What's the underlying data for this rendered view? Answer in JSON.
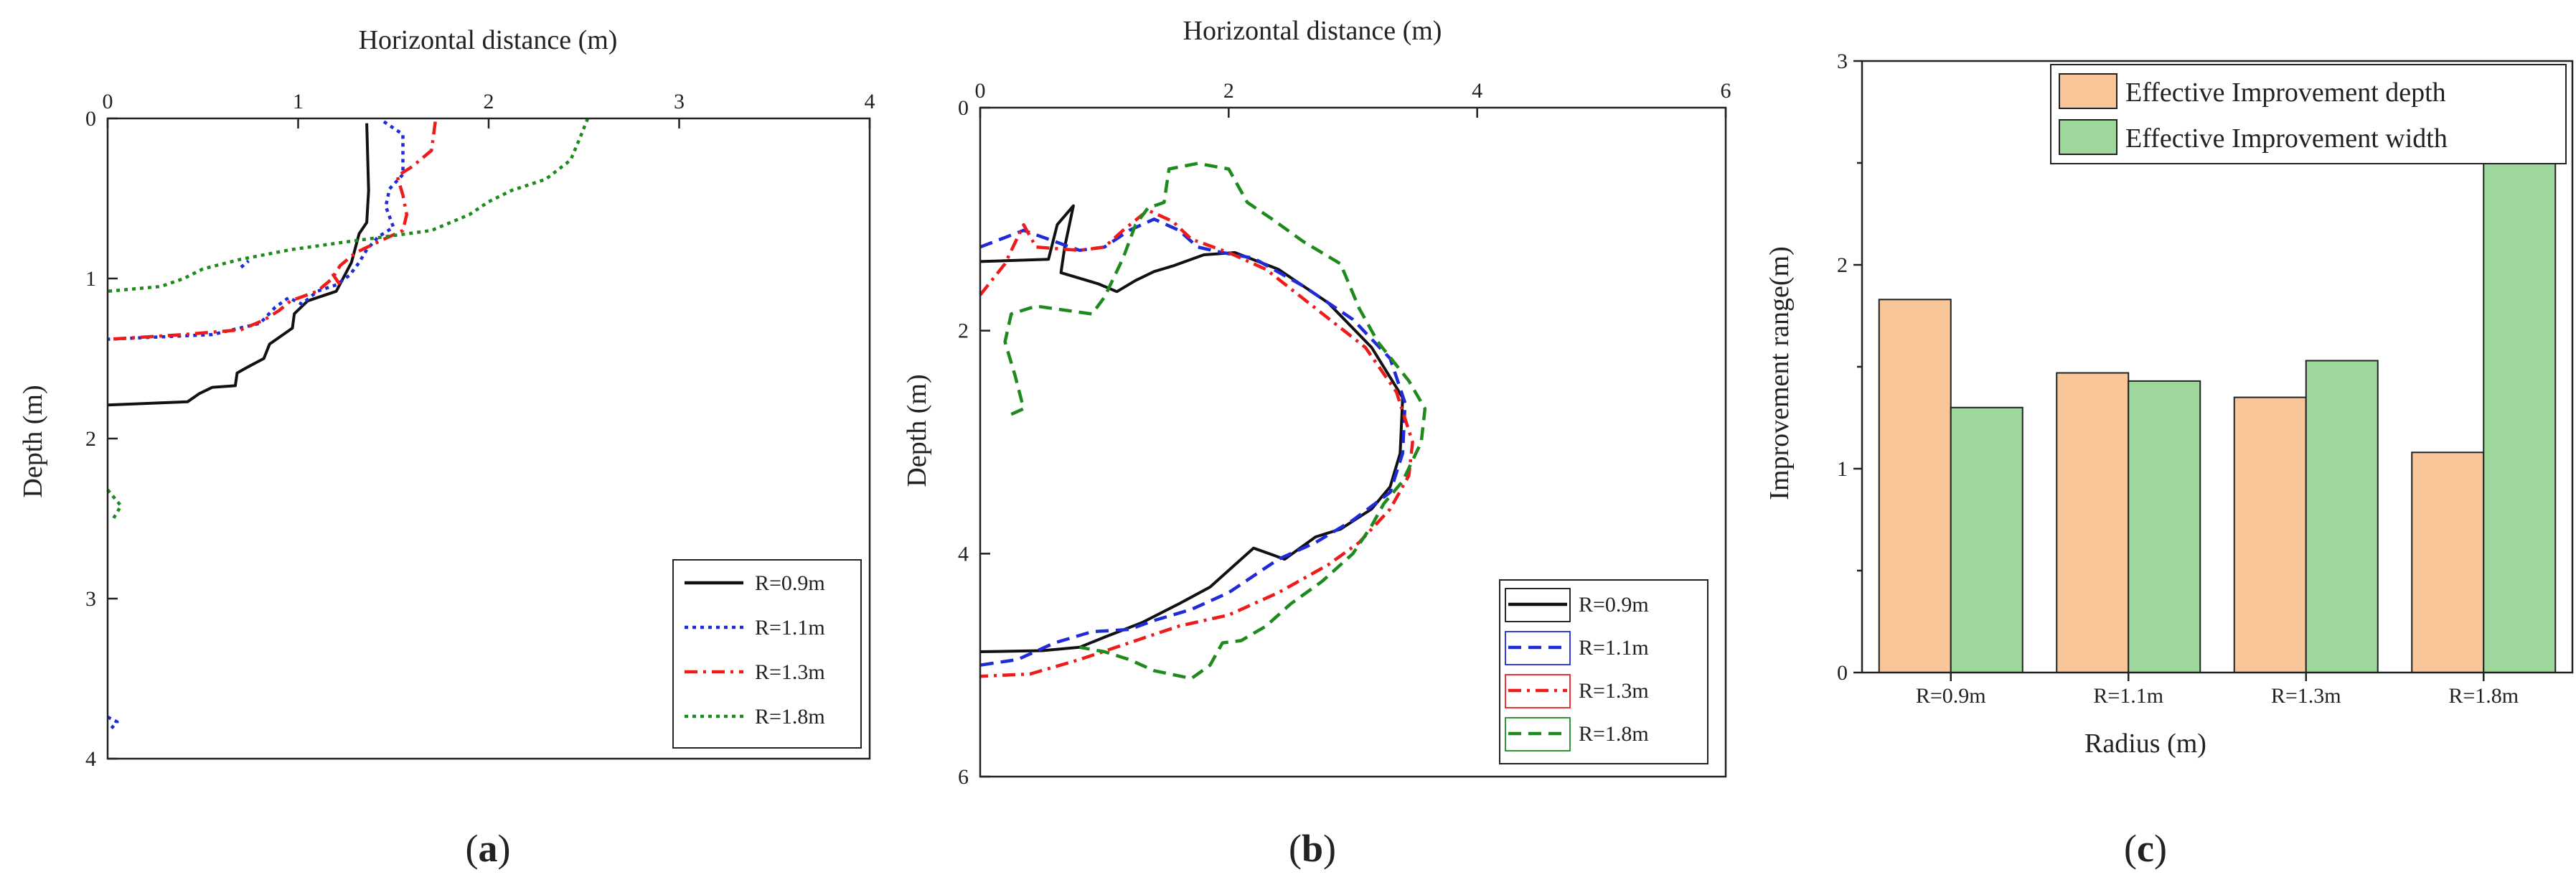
{
  "colors": {
    "R09": "#111111",
    "R11": "#1f2bd8",
    "R13": "#ee1b1b",
    "R18": "#1e8a1e",
    "depth_bar": "#f8c699",
    "width_bar": "#9ed79c"
  },
  "chart_data": [
    {
      "panel": "a",
      "type": "line",
      "xlabel": "Horizontal distance (m)",
      "ylabel": "Depth (m)",
      "xlim": [
        0,
        4
      ],
      "ylim": [
        4,
        0
      ],
      "x_ticks": [
        "0",
        "1",
        "2",
        "3",
        "4"
      ],
      "y_ticks": [
        "0",
        "1",
        "2",
        "3",
        "4"
      ],
      "legend_position": "bottom-right",
      "series": [
        {
          "name": "R=0.9m",
          "key": "R09",
          "style": "solid",
          "points": [
            [
              1.36,
              0.03
            ],
            [
              1.37,
              0.45
            ],
            [
              1.36,
              0.65
            ],
            [
              1.32,
              0.72
            ],
            [
              1.28,
              0.9
            ],
            [
              1.2,
              1.08
            ],
            [
              1.05,
              1.14
            ],
            [
              0.98,
              1.22
            ],
            [
              0.97,
              1.31
            ],
            [
              0.85,
              1.41
            ],
            [
              0.82,
              1.5
            ],
            [
              0.74,
              1.55
            ],
            [
              0.68,
              1.59
            ],
            [
              0.67,
              1.67
            ],
            [
              0.55,
              1.68
            ],
            [
              0.48,
              1.72
            ],
            [
              0.42,
              1.77
            ],
            [
              0.0,
              1.79
            ]
          ]
        },
        {
          "name": "R=1.1m",
          "key": "R11",
          "style": "dotted",
          "points": [
            [
              1.45,
              0.02
            ],
            [
              1.55,
              0.1
            ],
            [
              1.55,
              0.35
            ],
            [
              1.48,
              0.44
            ],
            [
              1.46,
              0.55
            ],
            [
              1.5,
              0.68
            ],
            [
              1.42,
              0.74
            ],
            [
              1.36,
              0.82
            ],
            [
              1.32,
              0.9
            ],
            [
              1.27,
              0.98
            ],
            [
              1.2,
              1.04
            ],
            [
              1.1,
              1.08
            ],
            [
              1.02,
              1.16
            ],
            [
              0.95,
              1.12
            ],
            [
              0.88,
              1.18
            ],
            [
              0.8,
              1.28
            ],
            [
              0.55,
              1.35
            ],
            [
              0.0,
              1.38
            ]
          ]
        },
        {
          "name": "R=1.3m",
          "key": "R13",
          "style": "dashdot",
          "points": [
            [
              1.72,
              0.02
            ],
            [
              1.7,
              0.2
            ],
            [
              1.6,
              0.3
            ],
            [
              1.52,
              0.36
            ],
            [
              1.55,
              0.48
            ],
            [
              1.57,
              0.6
            ],
            [
              1.55,
              0.7
            ],
            [
              1.44,
              0.76
            ],
            [
              1.3,
              0.84
            ],
            [
              1.22,
              0.92
            ],
            [
              1.18,
              1.0
            ],
            [
              1.1,
              1.08
            ],
            [
              0.96,
              1.14
            ],
            [
              0.9,
              1.2
            ],
            [
              0.82,
              1.26
            ],
            [
              0.7,
              1.32
            ],
            [
              0.4,
              1.35
            ],
            [
              0.0,
              1.38
            ]
          ]
        },
        {
          "name": "R=1.8m",
          "key": "R18",
          "style": "dotted",
          "points": [
            [
              2.52,
              0.0
            ],
            [
              2.48,
              0.12
            ],
            [
              2.43,
              0.26
            ],
            [
              2.3,
              0.38
            ],
            [
              2.12,
              0.45
            ],
            [
              2.0,
              0.52
            ],
            [
              1.9,
              0.6
            ],
            [
              1.7,
              0.7
            ],
            [
              1.45,
              0.74
            ],
            [
              1.2,
              0.78
            ],
            [
              0.96,
              0.82
            ],
            [
              0.7,
              0.88
            ],
            [
              0.5,
              0.94
            ],
            [
              0.4,
              1.0
            ],
            [
              0.28,
              1.05
            ],
            [
              0.0,
              1.08
            ]
          ]
        }
      ],
      "extra_marks": [
        {
          "key": "R13",
          "style": "dashdot",
          "points": [
            [
              1.18,
              0.97
            ],
            [
              1.22,
              1.04
            ]
          ]
        },
        {
          "key": "R11",
          "style": "dotted",
          "points": [
            [
              0.7,
              0.93
            ],
            [
              0.74,
              0.89
            ]
          ]
        },
        {
          "key": "R18",
          "style": "dotted",
          "points": [
            [
              0.0,
              2.32
            ],
            [
              0.07,
              2.42
            ],
            [
              0.02,
              2.52
            ]
          ]
        },
        {
          "key": "R11",
          "style": "dotted",
          "points": [
            [
              0.0,
              3.74
            ],
            [
              0.05,
              3.77
            ],
            [
              0.02,
              3.81
            ]
          ]
        }
      ]
    },
    {
      "panel": "b",
      "type": "line",
      "xlabel": "Horizontal distance (m)",
      "ylabel": "Depth (m)",
      "xlim": [
        0,
        6
      ],
      "ylim": [
        6,
        0
      ],
      "x_ticks": [
        "0",
        "2",
        "4",
        "6"
      ],
      "y_ticks": [
        "0",
        "2",
        "4",
        "6"
      ],
      "legend_position": "bottom-right",
      "series": [
        {
          "name": "R=0.9m",
          "key": "R09",
          "style": "solid",
          "points": [
            [
              0.0,
              1.38
            ],
            [
              0.55,
              1.36
            ],
            [
              0.62,
              1.05
            ],
            [
              0.75,
              0.88
            ],
            [
              0.68,
              1.25
            ],
            [
              0.65,
              1.48
            ],
            [
              0.95,
              1.58
            ],
            [
              1.1,
              1.65
            ],
            [
              1.25,
              1.55
            ],
            [
              1.4,
              1.47
            ],
            [
              1.55,
              1.42
            ],
            [
              1.8,
              1.32
            ],
            [
              2.05,
              1.3
            ],
            [
              2.4,
              1.45
            ],
            [
              2.8,
              1.75
            ],
            [
              3.15,
              2.15
            ],
            [
              3.4,
              2.6
            ],
            [
              3.38,
              3.1
            ],
            [
              3.3,
              3.4
            ],
            [
              3.15,
              3.6
            ],
            [
              2.9,
              3.78
            ],
            [
              2.7,
              3.85
            ],
            [
              2.45,
              4.05
            ],
            [
              2.2,
              3.95
            ],
            [
              2.05,
              4.1
            ],
            [
              1.85,
              4.3
            ],
            [
              1.6,
              4.45
            ],
            [
              1.3,
              4.62
            ],
            [
              1.0,
              4.75
            ],
            [
              0.8,
              4.84
            ],
            [
              0.5,
              4.87
            ],
            [
              0.0,
              4.88
            ]
          ]
        },
        {
          "name": "R=1.1m",
          "key": "R11",
          "style": "dashed",
          "points": [
            [
              0.0,
              1.25
            ],
            [
              0.35,
              1.1
            ],
            [
              0.55,
              1.18
            ],
            [
              0.8,
              1.28
            ],
            [
              1.0,
              1.25
            ],
            [
              1.2,
              1.1
            ],
            [
              1.4,
              1.0
            ],
            [
              1.6,
              1.1
            ],
            [
              1.75,
              1.25
            ],
            [
              1.95,
              1.3
            ],
            [
              2.2,
              1.35
            ],
            [
              2.6,
              1.6
            ],
            [
              3.0,
              1.9
            ],
            [
              3.3,
              2.25
            ],
            [
              3.42,
              2.65
            ],
            [
              3.4,
              3.1
            ],
            [
              3.3,
              3.45
            ],
            [
              3.0,
              3.7
            ],
            [
              2.7,
              3.9
            ],
            [
              2.4,
              4.05
            ],
            [
              2.0,
              4.35
            ],
            [
              1.7,
              4.5
            ],
            [
              1.4,
              4.6
            ],
            [
              1.2,
              4.68
            ],
            [
              0.9,
              4.7
            ],
            [
              0.6,
              4.8
            ],
            [
              0.3,
              4.95
            ],
            [
              0.0,
              5.0
            ]
          ]
        },
        {
          "name": "R=1.3m",
          "key": "R13",
          "style": "dashdot",
          "points": [
            [
              0.0,
              1.68
            ],
            [
              0.2,
              1.4
            ],
            [
              0.35,
              1.05
            ],
            [
              0.45,
              1.25
            ],
            [
              0.8,
              1.28
            ],
            [
              1.0,
              1.25
            ],
            [
              1.15,
              1.1
            ],
            [
              1.35,
              0.92
            ],
            [
              1.55,
              1.02
            ],
            [
              1.7,
              1.18
            ],
            [
              2.0,
              1.3
            ],
            [
              2.3,
              1.45
            ],
            [
              2.7,
              1.8
            ],
            [
              3.1,
              2.15
            ],
            [
              3.35,
              2.55
            ],
            [
              3.48,
              3.0
            ],
            [
              3.45,
              3.3
            ],
            [
              3.3,
              3.6
            ],
            [
              3.05,
              3.9
            ],
            [
              2.8,
              4.1
            ],
            [
              2.4,
              4.35
            ],
            [
              2.0,
              4.55
            ],
            [
              1.6,
              4.65
            ],
            [
              1.2,
              4.8
            ],
            [
              0.8,
              4.95
            ],
            [
              0.4,
              5.08
            ],
            [
              0.0,
              5.1
            ]
          ]
        },
        {
          "name": "R=1.8m",
          "key": "R18",
          "style": "dashed",
          "points": [
            [
              0.25,
              2.75
            ],
            [
              0.35,
              2.7
            ],
            [
              0.28,
              2.4
            ],
            [
              0.2,
              2.1
            ],
            [
              0.25,
              1.85
            ],
            [
              0.45,
              1.78
            ],
            [
              0.9,
              1.85
            ],
            [
              1.0,
              1.7
            ],
            [
              1.15,
              1.35
            ],
            [
              1.25,
              1.05
            ],
            [
              1.35,
              0.9
            ],
            [
              1.48,
              0.85
            ],
            [
              1.52,
              0.55
            ],
            [
              1.75,
              0.5
            ],
            [
              2.0,
              0.55
            ],
            [
              2.15,
              0.85
            ],
            [
              2.35,
              1.0
            ],
            [
              2.6,
              1.2
            ],
            [
              2.9,
              1.4
            ],
            [
              3.05,
              1.8
            ],
            [
              3.2,
              2.1
            ],
            [
              3.45,
              2.45
            ],
            [
              3.58,
              2.7
            ],
            [
              3.55,
              3.0
            ],
            [
              3.4,
              3.35
            ],
            [
              3.25,
              3.55
            ],
            [
              3.15,
              3.75
            ],
            [
              3.0,
              4.0
            ],
            [
              2.75,
              4.25
            ],
            [
              2.5,
              4.45
            ],
            [
              2.3,
              4.65
            ],
            [
              2.1,
              4.78
            ],
            [
              1.95,
              4.8
            ],
            [
              1.85,
              5.0
            ],
            [
              1.7,
              5.12
            ],
            [
              1.4,
              5.05
            ],
            [
              1.2,
              4.95
            ],
            [
              1.0,
              4.88
            ],
            [
              0.8,
              4.84
            ]
          ]
        }
      ]
    },
    {
      "panel": "c",
      "type": "bar",
      "xlabel": "Radius (m)",
      "ylabel": "Improvement range(m)",
      "ylim": [
        0,
        3
      ],
      "y_ticks": [
        "0",
        "1",
        "2",
        "3"
      ],
      "categories": [
        "R=0.9m",
        "R=1.1m",
        "R=1.3m",
        "R=1.8m"
      ],
      "legend_position": "top-right",
      "series": [
        {
          "name": "Effective Improvement depth",
          "key": "depth_bar",
          "values": [
            1.83,
            1.47,
            1.35,
            1.08
          ]
        },
        {
          "name": "Effective Improvement width",
          "key": "width_bar",
          "values": [
            1.3,
            1.43,
            1.53,
            2.5
          ]
        }
      ]
    }
  ],
  "panels": [
    {
      "label_open": "(",
      "label_letter": "a",
      "label_close": ")"
    },
    {
      "label_open": "(",
      "label_letter": "b",
      "label_close": ")"
    },
    {
      "label_open": "(",
      "label_letter": "c",
      "label_close": ")"
    }
  ]
}
